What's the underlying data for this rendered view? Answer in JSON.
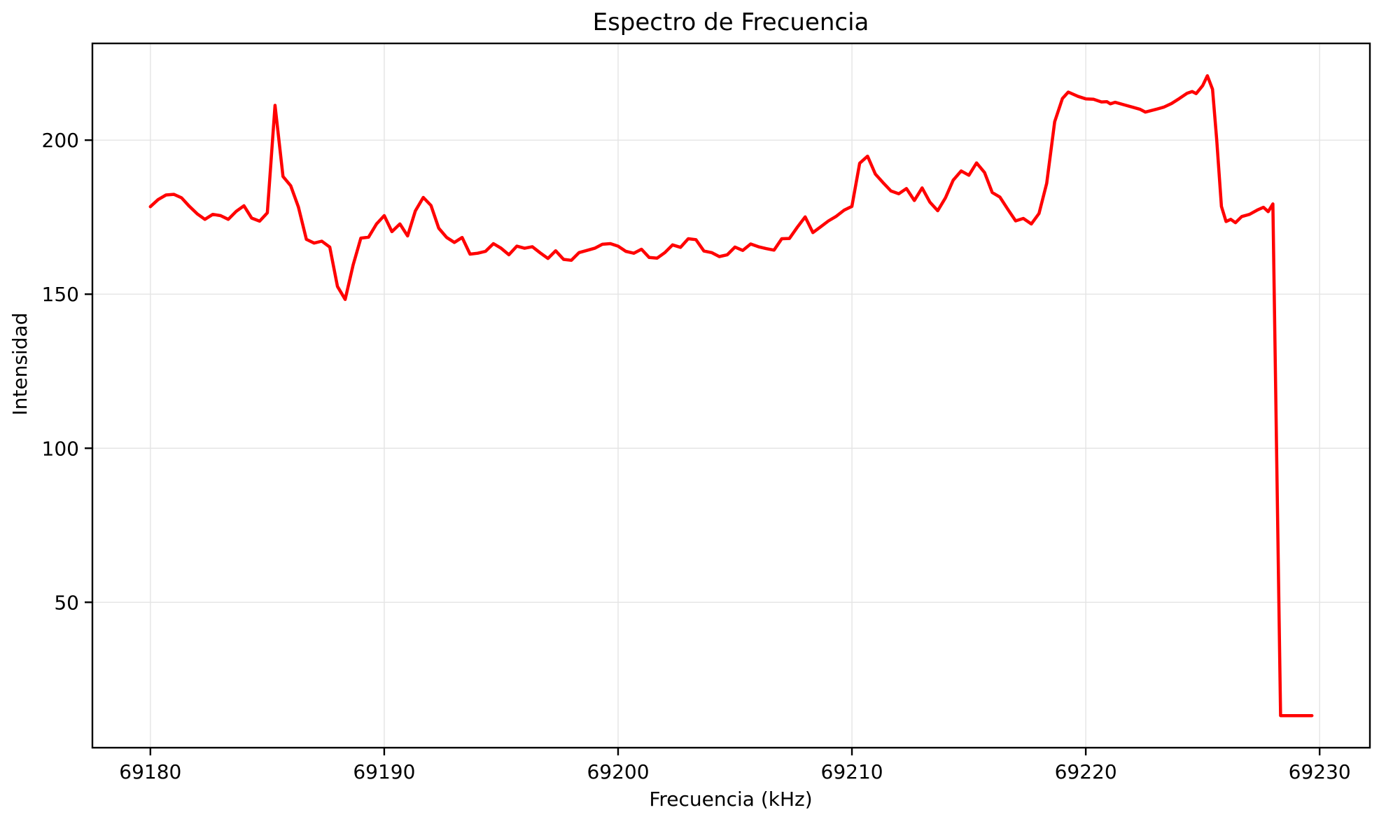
{
  "figure": {
    "title": "Espectro de Frecuencia",
    "x_axis_label": "Frecuencia (kHz)",
    "y_axis_label": "Intensidad",
    "colors": {
      "line": "#ff0000",
      "grid": "#e4e4e4",
      "spine": "#000000",
      "background": "#ffffff",
      "text": "#000000"
    }
  },
  "chart_data": {
    "type": "line",
    "title": "Espectro de Frecuencia",
    "xlabel": "Frecuencia (kHz)",
    "ylabel": "Intensidad",
    "xlim": [
      69177.52,
      69232.15
    ],
    "ylim": [
      2.8,
      231.4
    ],
    "x_ticks": [
      69180,
      69190,
      69200,
      69210,
      69220,
      69230
    ],
    "y_ticks": [
      50,
      100,
      150,
      200
    ],
    "grid": true,
    "legend_position": "none",
    "series": [
      {
        "name": "Intensidad",
        "color": "#ff0000",
        "line_width": 4.5,
        "points": [
          [
            69180.0,
            178.4
          ],
          [
            69180.33,
            180.7
          ],
          [
            69180.67,
            182.2
          ],
          [
            69181.0,
            182.4
          ],
          [
            69181.33,
            181.3
          ],
          [
            69181.67,
            178.5
          ],
          [
            69182.0,
            176.1
          ],
          [
            69182.33,
            174.3
          ],
          [
            69182.67,
            175.9
          ],
          [
            69183.0,
            175.5
          ],
          [
            69183.33,
            174.3
          ],
          [
            69183.67,
            176.9
          ],
          [
            69184.0,
            178.7
          ],
          [
            69184.33,
            174.7
          ],
          [
            69184.67,
            173.7
          ],
          [
            69185.0,
            176.4
          ],
          [
            69185.33,
            211.3
          ],
          [
            69185.67,
            188.2
          ],
          [
            69186.0,
            185.2
          ],
          [
            69186.33,
            178.3
          ],
          [
            69186.67,
            167.8
          ],
          [
            69187.0,
            166.6
          ],
          [
            69187.33,
            167.2
          ],
          [
            69187.67,
            165.3
          ],
          [
            69188.0,
            152.5
          ],
          [
            69188.33,
            148.3
          ],
          [
            69188.67,
            159.5
          ],
          [
            69189.0,
            168.2
          ],
          [
            69189.33,
            168.5
          ],
          [
            69189.67,
            172.8
          ],
          [
            69190.0,
            175.5
          ],
          [
            69190.33,
            170.3
          ],
          [
            69190.67,
            172.8
          ],
          [
            69191.0,
            168.9
          ],
          [
            69191.33,
            177.0
          ],
          [
            69191.67,
            181.4
          ],
          [
            69192.0,
            178.8
          ],
          [
            69192.33,
            171.4
          ],
          [
            69192.67,
            168.4
          ],
          [
            69193.0,
            166.8
          ],
          [
            69193.33,
            168.4
          ],
          [
            69193.67,
            163.0
          ],
          [
            69194.0,
            163.3
          ],
          [
            69194.33,
            163.9
          ],
          [
            69194.67,
            166.4
          ],
          [
            69195.0,
            164.9
          ],
          [
            69195.33,
            162.8
          ],
          [
            69195.67,
            165.6
          ],
          [
            69196.0,
            164.9
          ],
          [
            69196.33,
            165.4
          ],
          [
            69196.67,
            163.4
          ],
          [
            69197.0,
            161.6
          ],
          [
            69197.33,
            164.1
          ],
          [
            69197.67,
            161.3
          ],
          [
            69198.0,
            161.0
          ],
          [
            69198.33,
            163.5
          ],
          [
            69198.67,
            164.2
          ],
          [
            69199.0,
            164.9
          ],
          [
            69199.33,
            166.2
          ],
          [
            69199.67,
            166.4
          ],
          [
            69200.0,
            165.6
          ],
          [
            69200.33,
            163.9
          ],
          [
            69200.67,
            163.3
          ],
          [
            69201.0,
            164.6
          ],
          [
            69201.33,
            161.9
          ],
          [
            69201.67,
            161.7
          ],
          [
            69202.0,
            163.5
          ],
          [
            69202.33,
            166.0
          ],
          [
            69202.67,
            165.2
          ],
          [
            69203.0,
            168.0
          ],
          [
            69203.33,
            167.7
          ],
          [
            69203.67,
            164.0
          ],
          [
            69204.0,
            163.5
          ],
          [
            69204.33,
            162.2
          ],
          [
            69204.67,
            162.8
          ],
          [
            69205.0,
            165.3
          ],
          [
            69205.33,
            164.2
          ],
          [
            69205.67,
            166.3
          ],
          [
            69206.0,
            165.4
          ],
          [
            69206.33,
            164.8
          ],
          [
            69206.67,
            164.3
          ],
          [
            69207.0,
            168.0
          ],
          [
            69207.33,
            168.1
          ],
          [
            69207.67,
            171.8
          ],
          [
            69208.0,
            175.1
          ],
          [
            69208.33,
            170.0
          ],
          [
            69208.67,
            171.9
          ],
          [
            69209.0,
            173.8
          ],
          [
            69209.33,
            175.3
          ],
          [
            69209.67,
            177.3
          ],
          [
            69210.0,
            178.5
          ],
          [
            69210.33,
            192.5
          ],
          [
            69210.67,
            194.8
          ],
          [
            69211.0,
            189.0
          ],
          [
            69211.33,
            186.2
          ],
          [
            69211.67,
            183.5
          ],
          [
            69212.0,
            182.6
          ],
          [
            69212.33,
            184.3
          ],
          [
            69212.67,
            180.4
          ],
          [
            69213.0,
            184.5
          ],
          [
            69213.33,
            179.9
          ],
          [
            69213.67,
            177.1
          ],
          [
            69214.0,
            181.3
          ],
          [
            69214.33,
            187.0
          ],
          [
            69214.67,
            190.0
          ],
          [
            69215.0,
            188.6
          ],
          [
            69215.33,
            192.6
          ],
          [
            69215.67,
            189.5
          ],
          [
            69216.0,
            183.0
          ],
          [
            69216.33,
            181.5
          ],
          [
            69216.67,
            177.5
          ],
          [
            69217.0,
            173.8
          ],
          [
            69217.33,
            174.6
          ],
          [
            69217.67,
            172.8
          ],
          [
            69218.0,
            176.2
          ],
          [
            69218.33,
            186.0
          ],
          [
            69218.67,
            206.0
          ],
          [
            69219.0,
            213.5
          ],
          [
            69219.25,
            215.6
          ],
          [
            69219.67,
            214.2
          ],
          [
            69220.0,
            213.4
          ],
          [
            69220.33,
            213.3
          ],
          [
            69220.67,
            212.4
          ],
          [
            69220.9,
            212.5
          ],
          [
            69221.05,
            211.8
          ],
          [
            69221.25,
            212.3
          ],
          [
            69221.67,
            211.4
          ],
          [
            69222.0,
            210.7
          ],
          [
            69222.33,
            210.0
          ],
          [
            69222.55,
            209.1
          ],
          [
            69223.0,
            210.0
          ],
          [
            69223.33,
            210.7
          ],
          [
            69223.67,
            211.9
          ],
          [
            69224.0,
            213.5
          ],
          [
            69224.33,
            215.2
          ],
          [
            69224.55,
            215.8
          ],
          [
            69224.72,
            215.1
          ],
          [
            69225.0,
            217.7
          ],
          [
            69225.2,
            220.9
          ],
          [
            69225.42,
            216.5
          ],
          [
            69225.6,
            200.0
          ],
          [
            69225.8,
            178.5
          ],
          [
            69226.0,
            173.6
          ],
          [
            69226.2,
            174.3
          ],
          [
            69226.4,
            173.2
          ],
          [
            69226.67,
            175.2
          ],
          [
            69227.0,
            175.9
          ],
          [
            69227.33,
            177.3
          ],
          [
            69227.6,
            178.2
          ],
          [
            69227.8,
            176.8
          ],
          [
            69228.0,
            179.3
          ],
          [
            69228.33,
            13.2
          ],
          [
            69228.67,
            13.2
          ],
          [
            69229.0,
            13.2
          ],
          [
            69229.33,
            13.2
          ],
          [
            69229.67,
            13.2
          ]
        ]
      }
    ]
  }
}
